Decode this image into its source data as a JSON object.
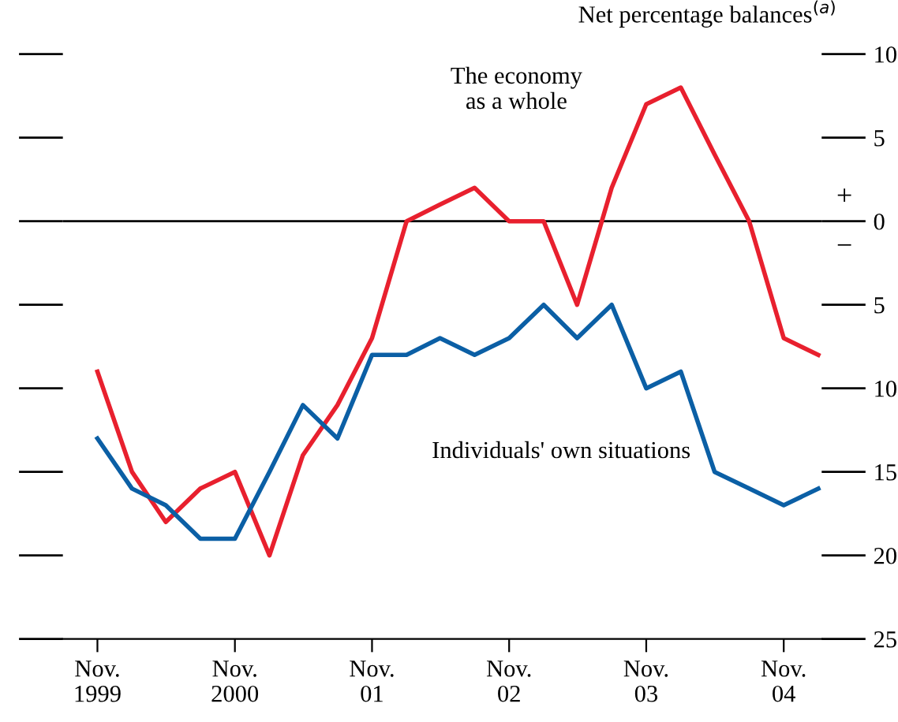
{
  "chart_data": {
    "type": "line",
    "ylabel": "Net percentage balances$^{(a)}$",
    "x": [
      "1999-11",
      "2000-02",
      "2000-05",
      "2000-08",
      "2000-11",
      "2001-02",
      "2001-05",
      "2001-08",
      "2001-11",
      "2002-02",
      "2002-05",
      "2002-08",
      "2002-11",
      "2003-02",
      "2003-05",
      "2003-08",
      "2003-11",
      "2004-02",
      "2004-05",
      "2004-08",
      "2004-11",
      "2005-02"
    ],
    "series": [
      {
        "name": "The economy as a whole",
        "color": "#e8202e",
        "values": [
          -9,
          -15,
          -18,
          -16,
          -15,
          -20,
          -14,
          -11,
          -7,
          0,
          1,
          2,
          0,
          0,
          -5,
          2,
          7,
          8,
          4,
          0,
          -7,
          -8
        ]
      },
      {
        "name": "Individuals' own situations",
        "color": "#0b5fa5",
        "values": [
          -13,
          -16,
          -17,
          -19,
          -19,
          -15,
          -11,
          -13,
          -8,
          -8,
          -7,
          -8,
          -7,
          -5,
          -7,
          -5,
          -10,
          -9,
          -15,
          -16,
          -17,
          -16
        ]
      }
    ],
    "ylim": [
      -25,
      10
    ],
    "yticks": [
      10,
      5,
      0,
      {
        "value": -5,
        "label": "5"
      },
      {
        "value": -10,
        "label": "10"
      },
      {
        "value": -15,
        "label": "15"
      },
      {
        "value": -20,
        "label": "20"
      },
      {
        "value": -25,
        "label": "25"
      }
    ],
    "xlim": [
      "1999-08-01",
      "2005-02-10"
    ],
    "xticks": [
      {
        "value": "1999-11",
        "label": "Nov.\n1999"
      },
      {
        "value": "2000-11",
        "label": "Nov.\n2000"
      },
      {
        "value": "2001-11",
        "label": "Nov.\n01"
      },
      {
        "value": "2002-11",
        "label": "Nov.\n02"
      },
      {
        "value": "2003-11",
        "label": "Nov.\n03"
      },
      {
        "value": "2004-11",
        "label": "Nov.\n04"
      }
    ],
    "ref_lines": [
      {
        "axis": "y",
        "value": 0,
        "color": "#000000"
      }
    ],
    "annotations": [
      "+",
      "−"
    ],
    "grid": false,
    "legend": false,
    "marker": "none",
    "line_style": "solid"
  }
}
